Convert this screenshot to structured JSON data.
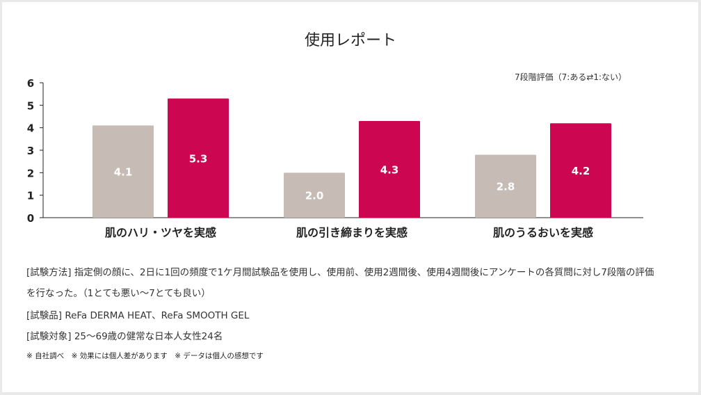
{
  "title": "使用レポート",
  "scale_note": "7段階評価（7:ある⇄1:ない）",
  "chart_data": {
    "type": "bar",
    "categories": [
      "肌のハリ・ツヤを実感",
      "肌の引き締まりを実感",
      "肌のうるおいを実感"
    ],
    "series": [
      {
        "values": [
          4.1,
          2.0,
          2.8
        ],
        "color": "#c6bcb5"
      },
      {
        "values": [
          5.3,
          4.3,
          4.2
        ],
        "color": "#cc0651"
      }
    ],
    "ylim": [
      0,
      6
    ],
    "yticks": [
      "0",
      "1",
      "2",
      "3",
      "4",
      "5",
      "6"
    ],
    "data_labels": [
      [
        "4.1",
        "2.0",
        "2.8"
      ],
      [
        "5.3",
        "4.3",
        "4.2"
      ]
    ],
    "grid": false
  },
  "notes": {
    "method_line1": "[試験方法] 指定側の顔に、2日に1回の頻度で1ケ月間試験品を使用し、使用前、使用2週間後、使用4週間後にアンケートの各質問に対し7段階の評価",
    "method_line2": "を行なった。（1とても悪い〜7とても良い）",
    "products": "[試験品] ReFa DERMA HEAT、ReFa SMOOTH GEL",
    "subjects": "[試験対象] 25〜69歳の健常な日本人女性24名",
    "disclaimer": "※ 自社調べ　※ 効果には個人差があります　※ データは個人の感想です"
  }
}
